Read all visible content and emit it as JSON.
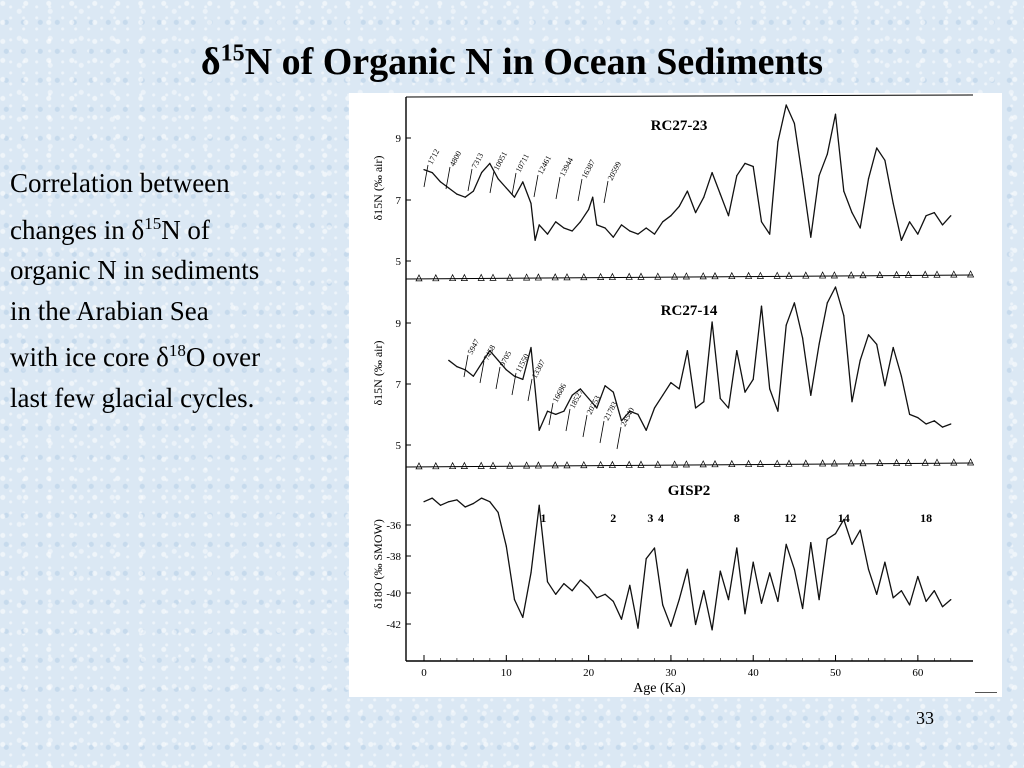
{
  "slide": {
    "title": {
      "delta": "δ",
      "sup": "15",
      "rest": "N of Organic N in Ocean Sediments"
    },
    "body": {
      "l1": "Correlation between",
      "l2a": "changes in δ",
      "l2sup": "15",
      "l2b": "N of",
      "l3": "organic N in sediments",
      "l4": "in the  Arabian Sea",
      "l5a": "with ice core δ",
      "l5sup": "18",
      "l5b": "O over",
      "l6": "last few glacial cycles."
    },
    "page_number": "33"
  },
  "chart_data": [
    {
      "type": "line",
      "title": "RC27-23",
      "ylabel": "δ15N (‰ air)",
      "yticks": [
        "9",
        "7",
        "5"
      ],
      "ylim": [
        4.4,
        9.8
      ],
      "xlim": [
        0,
        65
      ],
      "date_labels": [
        "1712",
        "4800",
        "7313",
        "10051",
        "10711",
        "12461",
        "13944",
        "16387",
        "20599"
      ],
      "series": [
        {
          "x": [
            0,
            1,
            2,
            3,
            4,
            5,
            6,
            7,
            8,
            9,
            10,
            11,
            12,
            13,
            13.5,
            14,
            15,
            16,
            17,
            18,
            19,
            20,
            20.5,
            21,
            22,
            23,
            24,
            25,
            26,
            27,
            28,
            29,
            30,
            31,
            32,
            33,
            34,
            35,
            36,
            37,
            38,
            39,
            40,
            41,
            42,
            43,
            44,
            45,
            46,
            47,
            48,
            49,
            50,
            51,
            52,
            53,
            54,
            55,
            56,
            57,
            58,
            59,
            60,
            61,
            62,
            63,
            64
          ],
          "y": [
            7.7,
            7.6,
            7.3,
            7.1,
            6.9,
            6.8,
            7.0,
            7.6,
            7.9,
            7.4,
            7.1,
            6.8,
            7.3,
            6.6,
            5.4,
            5.9,
            5.6,
            6.0,
            5.8,
            5.7,
            6.0,
            6.4,
            6.8,
            5.9,
            5.8,
            5.5,
            5.9,
            5.7,
            5.6,
            5.8,
            5.6,
            6.0,
            6.2,
            6.5,
            7.0,
            6.3,
            6.8,
            7.6,
            6.9,
            6.2,
            7.5,
            7.9,
            7.8,
            6.0,
            5.6,
            8.6,
            9.8,
            9.2,
            7.4,
            5.5,
            7.5,
            8.2,
            9.5,
            7.0,
            6.3,
            5.8,
            7.4,
            8.4,
            8.0,
            6.6,
            5.4,
            6.0,
            5.6,
            6.2,
            6.3,
            5.9,
            6.2
          ]
        }
      ]
    },
    {
      "type": "line",
      "title": "RC27-14",
      "ylabel": "δ15N (‰ air)",
      "yticks": [
        "9",
        "7",
        "5"
      ],
      "ylim": [
        4.4,
        9.8
      ],
      "xlim": [
        0,
        65
      ],
      "date_labels": [
        "5947",
        "7458",
        "9705",
        "11550",
        "13307",
        "16686",
        "18527",
        "20253",
        "21783",
        "24540"
      ],
      "series": [
        {
          "x": [
            3,
            4,
            5,
            6,
            7,
            8,
            9,
            10,
            11,
            12,
            13,
            14,
            15,
            16,
            17,
            18,
            19,
            20,
            21,
            22,
            23,
            24,
            25,
            26,
            27,
            28,
            29,
            30,
            31,
            32,
            33,
            34,
            35,
            36,
            37,
            38,
            39,
            40,
            41,
            42,
            43,
            44,
            45,
            46,
            47,
            48,
            49,
            50,
            51,
            52,
            53,
            54,
            55,
            56,
            57,
            58,
            59,
            60,
            61,
            62,
            63,
            64
          ],
          "y": [
            7.5,
            7.3,
            7.2,
            7.0,
            7.4,
            7.8,
            7.5,
            7.2,
            7.0,
            6.9,
            7.9,
            5.3,
            5.9,
            5.8,
            5.9,
            6.4,
            6.6,
            6.3,
            6.0,
            6.7,
            6.5,
            5.6,
            5.9,
            5.8,
            5.3,
            6.0,
            6.4,
            6.8,
            6.6,
            7.8,
            6.0,
            6.2,
            8.7,
            6.3,
            6.0,
            7.8,
            6.5,
            6.9,
            9.2,
            6.6,
            5.9,
            8.6,
            9.3,
            8.2,
            6.4,
            8.0,
            9.3,
            9.8,
            8.9,
            6.2,
            7.5,
            8.3,
            8.0,
            6.7,
            7.9,
            7.0,
            5.8,
            5.7,
            5.5,
            5.6,
            5.4,
            5.5
          ]
        }
      ]
    },
    {
      "type": "line",
      "title": "GISP2",
      "ylabel": "δ18O (‰ SMOW)",
      "yticks": [
        "-36",
        "-38",
        "-40",
        "-42"
      ],
      "xlabel": "Age (Ka)",
      "xticks": [
        "0",
        "10",
        "20",
        "30",
        "40",
        "50",
        "60"
      ],
      "ylim": [
        -43.5,
        -33.5
      ],
      "xlim": [
        0,
        65
      ],
      "event_labels": [
        {
          "label": "1",
          "x": 14.5
        },
        {
          "label": "2",
          "x": 23
        },
        {
          "label": "3",
          "x": 27.5
        },
        {
          "label": "4",
          "x": 28.8
        },
        {
          "label": "8",
          "x": 38
        },
        {
          "label": "12",
          "x": 44.5
        },
        {
          "label": "14",
          "x": 51
        },
        {
          "label": "18",
          "x": 61
        }
      ],
      "series": [
        {
          "x": [
            0,
            1,
            2,
            3,
            4,
            5,
            6,
            7,
            8,
            9,
            10,
            11,
            12,
            13,
            14,
            15,
            16,
            17,
            18,
            19,
            20,
            21,
            22,
            23,
            24,
            25,
            26,
            27,
            28,
            29,
            30,
            31,
            32,
            33,
            34,
            35,
            36,
            37,
            38,
            39,
            40,
            41,
            42,
            43,
            44,
            45,
            46,
            47,
            48,
            49,
            50,
            51,
            52,
            53,
            54,
            55,
            56,
            57,
            58,
            59,
            60,
            61,
            62,
            63,
            64
          ],
          "y": [
            -35,
            -34.8,
            -35.2,
            -35.0,
            -34.9,
            -35.3,
            -35.1,
            -34.8,
            -35.0,
            -35.6,
            -37.5,
            -40.5,
            -41.5,
            -39.0,
            -35.2,
            -39.5,
            -40.2,
            -39.6,
            -40.0,
            -39.4,
            -39.8,
            -40.4,
            -40.2,
            -40.6,
            -41.6,
            -39.7,
            -42.1,
            -38.2,
            -37.6,
            -40.8,
            -42.0,
            -40.5,
            -38.8,
            -41.9,
            -40.0,
            -42.2,
            -38.9,
            -40.5,
            -37.6,
            -41.3,
            -38.4,
            -40.7,
            -39.0,
            -40.6,
            -37.4,
            -38.8,
            -41.0,
            -37.3,
            -40.5,
            -37.1,
            -36.8,
            -36.0,
            -37.4,
            -36.6,
            -38.8,
            -40.2,
            -38.4,
            -40.4,
            -40.0,
            -40.8,
            -39.2,
            -40.6,
            -40.0,
            -40.9,
            -40.5
          ]
        }
      ]
    }
  ]
}
